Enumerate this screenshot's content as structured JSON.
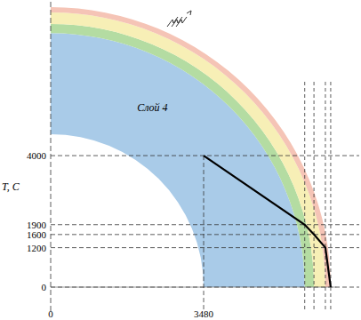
{
  "chart_data": {
    "type": "line",
    "y_label": "T, C",
    "x": [
      3480,
      5780,
      5990,
      6250,
      6371
    ],
    "series": [
      {
        "values": [
          4000,
          1900,
          1600,
          1200,
          0
        ],
        "color": "#000000"
      }
    ],
    "xlim": [
      0,
      6500
    ],
    "xticks": [
      0,
      3480
    ],
    "ylim": [
      0,
      8680
    ],
    "yticks": [
      0,
      1200,
      1600,
      1900,
      4000
    ],
    "regions": [
      {
        "label": "Слой 4",
        "inner": 3480,
        "outer": 5780,
        "color": "#a9cbe8"
      },
      {
        "inner": 5780,
        "outer": 5990,
        "color": "#b4dca2"
      },
      {
        "inner": 5990,
        "outer": 6250,
        "color": "#f7efb6"
      },
      {
        "inner": 6250,
        "outer": 6371,
        "color": "#f5c4b6"
      }
    ],
    "grid": true
  }
}
